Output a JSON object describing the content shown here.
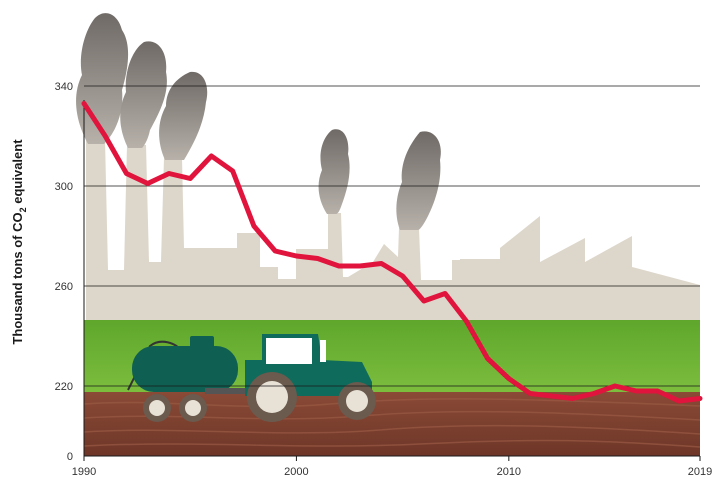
{
  "chart_data": {
    "type": "line",
    "ylabel": "Thousand tons of CO",
    "ylabel_subscript": "2",
    "ylabel_suffix": " equivalent",
    "x_ticks": [
      "1990",
      "2000",
      "2010",
      "2019"
    ],
    "y_ticks": [
      "0",
      "220",
      "260",
      "300",
      "340"
    ],
    "xlim": [
      1990,
      2019
    ],
    "y_axis_note": "broken axis: 0 at the bottom, then 200 to 350",
    "grid": "horizontal lines at 220, 260, 300, 340",
    "series": [
      {
        "color": "#e0143c",
        "x": [
          1990,
          1991,
          1992,
          1993,
          1994,
          1995,
          1996,
          1997,
          1998,
          1999,
          2000,
          2001,
          2002,
          2003,
          2004,
          2005,
          2006,
          2007,
          2008,
          2009,
          2010,
          2011,
          2012,
          2013,
          2014,
          2015,
          2016,
          2017,
          2018,
          2019
        ],
        "values": [
          333,
          320,
          305,
          301,
          305,
          303,
          312,
          306,
          284,
          274,
          272,
          271,
          268,
          268,
          269,
          264,
          254,
          257,
          246,
          231,
          223,
          217,
          216,
          215,
          217,
          220,
          218,
          218,
          214,
          215
        ]
      }
    ]
  },
  "illustration": {
    "sky_color": "#ffffff",
    "factory_color": "#ddd6ca",
    "smoke_color": "#8a8580",
    "field_color": "#6cb233",
    "soil_color": "#7a3f2f",
    "tractor_body_color": "#0f6b5b",
    "tank_color": "#0f5f52",
    "line_color": "#e0143c"
  }
}
